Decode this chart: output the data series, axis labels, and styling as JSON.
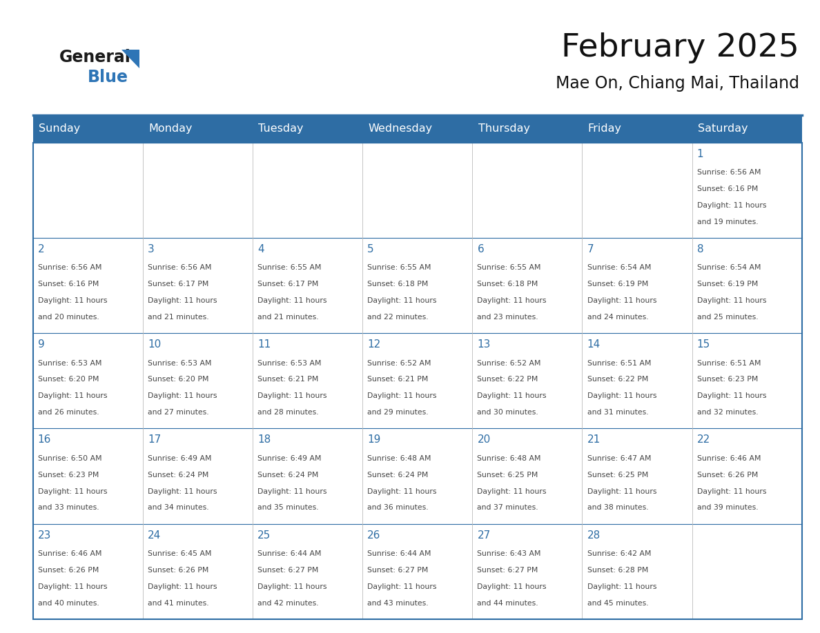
{
  "title": "February 2025",
  "subtitle": "Mae On, Chiang Mai, Thailand",
  "days_of_week": [
    "Sunday",
    "Monday",
    "Tuesday",
    "Wednesday",
    "Thursday",
    "Friday",
    "Saturday"
  ],
  "header_bg": "#2E6DA4",
  "header_text": "#FFFFFF",
  "border_color": "#2E6DA4",
  "day_number_color": "#2E6DA4",
  "text_color": "#444444",
  "logo_general_color": "#1a1a1a",
  "logo_blue_color": "#2E75B6",
  "calendar_data": {
    "1": {
      "sunrise": "6:56 AM",
      "sunset": "6:16 PM",
      "daylight": "11 hours and 19 minutes."
    },
    "2": {
      "sunrise": "6:56 AM",
      "sunset": "6:16 PM",
      "daylight": "11 hours and 20 minutes."
    },
    "3": {
      "sunrise": "6:56 AM",
      "sunset": "6:17 PM",
      "daylight": "11 hours and 21 minutes."
    },
    "4": {
      "sunrise": "6:55 AM",
      "sunset": "6:17 PM",
      "daylight": "11 hours and 21 minutes."
    },
    "5": {
      "sunrise": "6:55 AM",
      "sunset": "6:18 PM",
      "daylight": "11 hours and 22 minutes."
    },
    "6": {
      "sunrise": "6:55 AM",
      "sunset": "6:18 PM",
      "daylight": "11 hours and 23 minutes."
    },
    "7": {
      "sunrise": "6:54 AM",
      "sunset": "6:19 PM",
      "daylight": "11 hours and 24 minutes."
    },
    "8": {
      "sunrise": "6:54 AM",
      "sunset": "6:19 PM",
      "daylight": "11 hours and 25 minutes."
    },
    "9": {
      "sunrise": "6:53 AM",
      "sunset": "6:20 PM",
      "daylight": "11 hours and 26 minutes."
    },
    "10": {
      "sunrise": "6:53 AM",
      "sunset": "6:20 PM",
      "daylight": "11 hours and 27 minutes."
    },
    "11": {
      "sunrise": "6:53 AM",
      "sunset": "6:21 PM",
      "daylight": "11 hours and 28 minutes."
    },
    "12": {
      "sunrise": "6:52 AM",
      "sunset": "6:21 PM",
      "daylight": "11 hours and 29 minutes."
    },
    "13": {
      "sunrise": "6:52 AM",
      "sunset": "6:22 PM",
      "daylight": "11 hours and 30 minutes."
    },
    "14": {
      "sunrise": "6:51 AM",
      "sunset": "6:22 PM",
      "daylight": "11 hours and 31 minutes."
    },
    "15": {
      "sunrise": "6:51 AM",
      "sunset": "6:23 PM",
      "daylight": "11 hours and 32 minutes."
    },
    "16": {
      "sunrise": "6:50 AM",
      "sunset": "6:23 PM",
      "daylight": "11 hours and 33 minutes."
    },
    "17": {
      "sunrise": "6:49 AM",
      "sunset": "6:24 PM",
      "daylight": "11 hours and 34 minutes."
    },
    "18": {
      "sunrise": "6:49 AM",
      "sunset": "6:24 PM",
      "daylight": "11 hours and 35 minutes."
    },
    "19": {
      "sunrise": "6:48 AM",
      "sunset": "6:24 PM",
      "daylight": "11 hours and 36 minutes."
    },
    "20": {
      "sunrise": "6:48 AM",
      "sunset": "6:25 PM",
      "daylight": "11 hours and 37 minutes."
    },
    "21": {
      "sunrise": "6:47 AM",
      "sunset": "6:25 PM",
      "daylight": "11 hours and 38 minutes."
    },
    "22": {
      "sunrise": "6:46 AM",
      "sunset": "6:26 PM",
      "daylight": "11 hours and 39 minutes."
    },
    "23": {
      "sunrise": "6:46 AM",
      "sunset": "6:26 PM",
      "daylight": "11 hours and 40 minutes."
    },
    "24": {
      "sunrise": "6:45 AM",
      "sunset": "6:26 PM",
      "daylight": "11 hours and 41 minutes."
    },
    "25": {
      "sunrise": "6:44 AM",
      "sunset": "6:27 PM",
      "daylight": "11 hours and 42 minutes."
    },
    "26": {
      "sunrise": "6:44 AM",
      "sunset": "6:27 PM",
      "daylight": "11 hours and 43 minutes."
    },
    "27": {
      "sunrise": "6:43 AM",
      "sunset": "6:27 PM",
      "daylight": "11 hours and 44 minutes."
    },
    "28": {
      "sunrise": "6:42 AM",
      "sunset": "6:28 PM",
      "daylight": "11 hours and 45 minutes."
    }
  },
  "week_layout": [
    [
      null,
      null,
      null,
      null,
      null,
      null,
      1
    ],
    [
      2,
      3,
      4,
      5,
      6,
      7,
      8
    ],
    [
      9,
      10,
      11,
      12,
      13,
      14,
      15
    ],
    [
      16,
      17,
      18,
      19,
      20,
      21,
      22
    ],
    [
      23,
      24,
      25,
      26,
      27,
      28,
      null
    ]
  ]
}
